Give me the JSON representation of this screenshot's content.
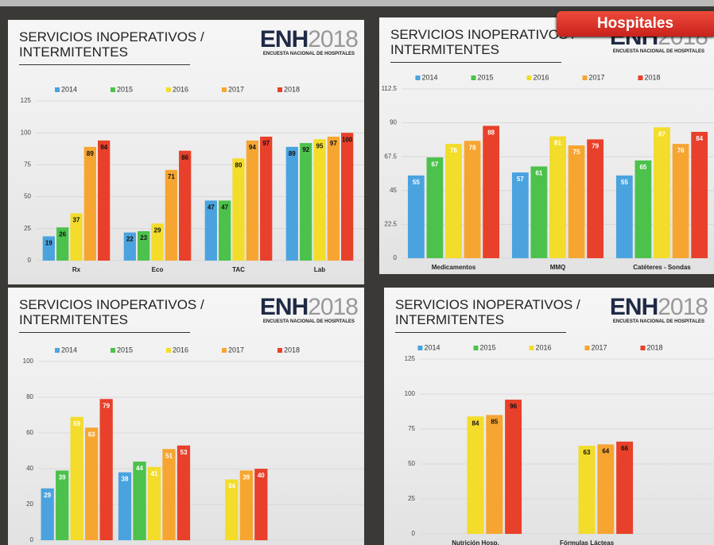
{
  "banner": "Hospitales",
  "logo": {
    "brand": "ENH",
    "year": "2018",
    "subtitle": "ENCUESTA NACIONAL DE HOSPITALES"
  },
  "chart_data": [
    {
      "type": "bar",
      "title": "SERVICIOS INOPERATIVOS / INTERMITENTES",
      "legend": "top",
      "grid": true,
      "value_label_color": "#111",
      "categories": [
        "Rx",
        "Eco",
        "TAC",
        "Lab"
      ],
      "series": [
        {
          "name": "2014",
          "color": "#4aa3df",
          "values": [
            19,
            22,
            47,
            89
          ]
        },
        {
          "name": "2015",
          "color": "#4cc24c",
          "values": [
            26,
            23,
            47,
            92
          ]
        },
        {
          "name": "2016",
          "color": "#f3dc2a",
          "values": [
            37,
            29,
            80,
            95
          ]
        },
        {
          "name": "2017",
          "color": "#f7a531",
          "values": [
            89,
            71,
            94,
            97
          ]
        },
        {
          "name": "2018",
          "color": "#e8402a",
          "values": [
            94,
            86,
            97,
            100
          ]
        }
      ],
      "ylim": [
        0,
        125
      ],
      "yticks": [
        0,
        25,
        50,
        75,
        100,
        125
      ]
    },
    {
      "type": "bar",
      "title": "SERVICIOS INOPERATIVOS / INTERMITENTES",
      "legend": "top",
      "grid": true,
      "value_label_color": "#ffffff",
      "categories": [
        "Medicamentos",
        "MMQ",
        "Catéteres - Sondas"
      ],
      "series": [
        {
          "name": "2014",
          "color": "#4aa3df",
          "values": [
            55,
            57,
            55
          ]
        },
        {
          "name": "2015",
          "color": "#4cc24c",
          "values": [
            67,
            61,
            65
          ]
        },
        {
          "name": "2016",
          "color": "#f3dc2a",
          "values": [
            76,
            81,
            87
          ]
        },
        {
          "name": "2017",
          "color": "#f7a531",
          "values": [
            78,
            75,
            76
          ]
        },
        {
          "name": "2018",
          "color": "#e8402a",
          "values": [
            88,
            79,
            84
          ]
        }
      ],
      "ylim": [
        0,
        112.5
      ],
      "yticks": [
        0,
        22.5,
        45,
        67.5,
        90,
        112.5
      ]
    },
    {
      "type": "bar",
      "title": "SERVICIOS INOPERATIVOS / INTERMITENTES",
      "legend": "top",
      "grid": true,
      "value_label_color": "#ffffff",
      "categories": [
        null,
        null,
        null
      ],
      "series": [
        {
          "name": "2014",
          "color": "#4aa3df",
          "values": [
            29,
            38,
            null
          ]
        },
        {
          "name": "2015",
          "color": "#4cc24c",
          "values": [
            39,
            44,
            null
          ]
        },
        {
          "name": "2016",
          "color": "#f3dc2a",
          "values": [
            69,
            41,
            34
          ]
        },
        {
          "name": "2017",
          "color": "#f7a531",
          "values": [
            63,
            51,
            39
          ]
        },
        {
          "name": "2018",
          "color": "#e8402a",
          "values": [
            79,
            53,
            40
          ]
        }
      ],
      "ylim": [
        0,
        100
      ],
      "yticks": [
        0,
        20,
        40,
        60,
        80,
        100
      ]
    },
    {
      "type": "bar",
      "title": "SERVICIOS INOPERATIVOS / INTERMITENTES",
      "legend": "top",
      "grid": true,
      "value_label_color": "#111",
      "categories": [
        "Nutrición Hosp.",
        "Fórmulas Lácteas"
      ],
      "series": [
        {
          "name": "2014",
          "color": "#4aa3df",
          "values": [
            null,
            null
          ]
        },
        {
          "name": "2015",
          "color": "#4cc24c",
          "values": [
            null,
            null
          ]
        },
        {
          "name": "2016",
          "color": "#f3dc2a",
          "values": [
            84,
            63
          ]
        },
        {
          "name": "2017",
          "color": "#f7a531",
          "values": [
            85,
            64
          ]
        },
        {
          "name": "2018",
          "color": "#e8402a",
          "values": [
            96,
            66
          ]
        }
      ],
      "ylim": [
        0,
        125
      ],
      "yticks": [
        0,
        25,
        50,
        75,
        100,
        125
      ]
    }
  ]
}
